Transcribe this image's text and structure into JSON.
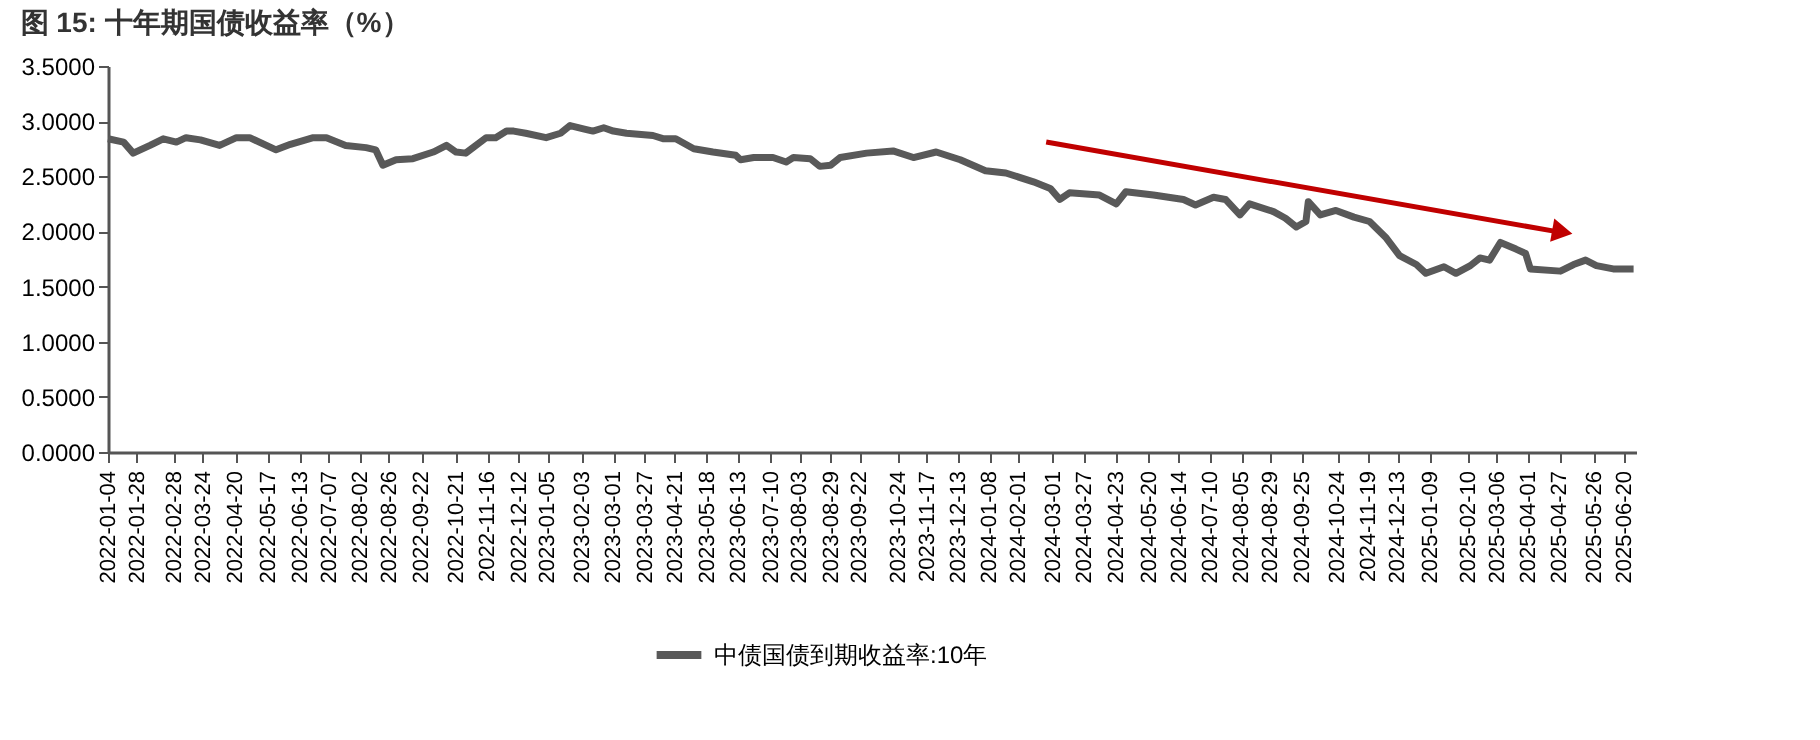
{
  "chart_data": {
    "type": "line",
    "title": "图 15: 十年期国债收益率（%）",
    "x": [
      "2022-01-04",
      "2022-01-17",
      "2022-01-25",
      "2022-02-08",
      "2022-02-19",
      "2022-03-02",
      "2022-03-10",
      "2022-03-22",
      "2022-04-07",
      "2022-04-21",
      "2022-05-02",
      "2022-05-24",
      "2022-06-05",
      "2022-06-24",
      "2022-07-05",
      "2022-07-21",
      "2022-08-07",
      "2022-08-15",
      "2022-08-21",
      "2022-09-01",
      "2022-09-15",
      "2022-10-02",
      "2022-10-13",
      "2022-10-21",
      "2022-10-29",
      "2022-11-15",
      "2022-11-23",
      "2022-12-02",
      "2022-12-08",
      "2022-12-18",
      "2023-01-04",
      "2023-01-16",
      "2023-01-24",
      "2023-02-04",
      "2023-02-12",
      "2023-02-21",
      "2023-03-01",
      "2023-03-12",
      "2023-04-03",
      "2023-04-12",
      "2023-04-22",
      "2023-05-07",
      "2023-05-23",
      "2023-06-11",
      "2023-06-15",
      "2023-06-26",
      "2023-07-12",
      "2023-07-23",
      "2023-07-29",
      "2023-08-12",
      "2023-08-20",
      "2023-08-29",
      "2023-09-06",
      "2023-09-28",
      "2023-10-20",
      "2023-11-06",
      "2023-11-25",
      "2023-12-15",
      "2024-01-05",
      "2024-01-22",
      "2024-02-14",
      "2024-02-28",
      "2024-03-07",
      "2024-03-15",
      "2024-04-09",
      "2024-04-23",
      "2024-05-01",
      "2024-05-24",
      "2024-06-18",
      "2024-06-28",
      "2024-07-13",
      "2024-07-23",
      "2024-08-04",
      "2024-08-12",
      "2024-09-01",
      "2024-09-11",
      "2024-09-20",
      "2024-09-28",
      "2024-09-30",
      "2024-10-10",
      "2024-10-23",
      "2024-11-07",
      "2024-11-20",
      "2024-12-04",
      "2024-12-15",
      "2024-12-29",
      "2025-01-06",
      "2025-01-21",
      "2025-01-31",
      "2025-02-12",
      "2025-02-20",
      "2025-02-28",
      "2025-03-09",
      "2025-03-22",
      "2025-03-30",
      "2025-04-03",
      "2025-04-28",
      "2025-05-09",
      "2025-05-19",
      "2025-05-28",
      "2025-06-11",
      "2025-06-28"
    ],
    "series": [
      {
        "name": "中债国债到期收益率:10年",
        "color": "#595959",
        "values": [
          2.84,
          2.81,
          2.71,
          2.78,
          2.84,
          2.81,
          2.85,
          2.83,
          2.78,
          2.85,
          2.85,
          2.74,
          2.79,
          2.85,
          2.85,
          2.78,
          2.76,
          2.74,
          2.6,
          2.65,
          2.66,
          2.72,
          2.78,
          2.72,
          2.71,
          2.85,
          2.85,
          2.91,
          2.91,
          2.89,
          2.85,
          2.89,
          2.96,
          2.93,
          2.91,
          2.94,
          2.91,
          2.89,
          2.87,
          2.84,
          2.84,
          2.75,
          2.72,
          2.69,
          2.65,
          2.67,
          2.67,
          2.63,
          2.67,
          2.66,
          2.59,
          2.6,
          2.67,
          2.71,
          2.73,
          2.67,
          2.72,
          2.65,
          2.55,
          2.53,
          2.45,
          2.39,
          2.29,
          2.35,
          2.33,
          2.25,
          2.36,
          2.33,
          2.29,
          2.24,
          2.31,
          2.29,
          2.15,
          2.25,
          2.18,
          2.12,
          2.04,
          2.09,
          2.27,
          2.15,
          2.19,
          2.13,
          2.09,
          1.94,
          1.78,
          1.7,
          1.62,
          1.68,
          1.62,
          1.69,
          1.76,
          1.74,
          1.9,
          1.84,
          1.8,
          1.66,
          1.64,
          1.7,
          1.74,
          1.69,
          1.66,
          1.66
        ]
      }
    ],
    "xlim": [
      "2022-01-04",
      "2025-06-30"
    ],
    "xticks": [
      "2022-01-04",
      "2022-01-28",
      "2022-02-28",
      "2022-03-24",
      "2022-04-20",
      "2022-05-17",
      "2022-06-13",
      "2022-07-07",
      "2022-08-02",
      "2022-08-26",
      "2022-09-22",
      "2022-10-21",
      "2022-11-16",
      "2022-12-12",
      "2023-01-05",
      "2023-02-03",
      "2023-03-01",
      "2023-03-27",
      "2023-04-21",
      "2023-05-18",
      "2023-06-13",
      "2023-07-10",
      "2023-08-03",
      "2023-08-29",
      "2023-09-22",
      "2023-10-24",
      "2023-11-17",
      "2023-12-13",
      "2024-01-08",
      "2024-02-01",
      "2024-03-01",
      "2024-03-27",
      "2024-04-23",
      "2024-05-20",
      "2024-06-14",
      "2024-07-10",
      "2024-08-05",
      "2024-08-29",
      "2024-09-25",
      "2024-10-24",
      "2024-11-19",
      "2024-12-13",
      "2025-01-09",
      "2025-02-10",
      "2025-03-06",
      "2025-04-01",
      "2025-04-27",
      "2025-05-26",
      "2025-06-20"
    ],
    "ylim": [
      0,
      3.5
    ],
    "yticks": [
      {
        "value": 0,
        "label": "0.0000"
      },
      {
        "value": 0.5,
        "label": "0.5000"
      },
      {
        "value": 1,
        "label": "1.0000"
      },
      {
        "value": 1.5,
        "label": "1.5000"
      },
      {
        "value": 2,
        "label": "2.0000"
      },
      {
        "value": 2.5,
        "label": "2.5000"
      },
      {
        "value": 3,
        "label": "3.0000"
      },
      {
        "value": 3.5,
        "label": "3.5000"
      }
    ],
    "grid": false,
    "legend": "bottom",
    "marker": "none",
    "line_style": "solid"
  }
}
